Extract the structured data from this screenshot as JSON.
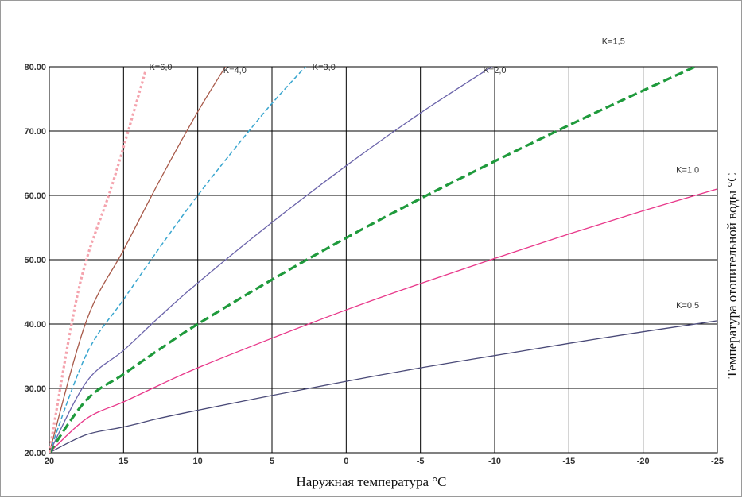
{
  "chart_data": {
    "type": "line",
    "title": "",
    "xlabel": "Наружная температура °C",
    "ylabel": "Температура отопительной воды °C",
    "xlim": [
      20,
      -25
    ],
    "ylim": [
      20,
      80
    ],
    "xticks": [
      20,
      15,
      10,
      5,
      0,
      -5,
      -10,
      -15,
      -20,
      -25
    ],
    "xtick_labels": [
      "20",
      "15",
      "10",
      "5",
      "0",
      "-5",
      "-10",
      "-15",
      "-20",
      "-25"
    ],
    "yticks": [
      20,
      30,
      40,
      50,
      60,
      70,
      80
    ],
    "ytick_labels": [
      "20.00",
      "30.00",
      "40.00",
      "50.00",
      "60.00",
      "70.00",
      "80.00"
    ],
    "grid": true,
    "series": [
      {
        "name": "K=0,5",
        "color": "#4a4a78",
        "dash": "solid",
        "x": [
          20,
          17.5,
          15,
          12.5,
          10,
          5,
          0,
          -5,
          -10,
          -15,
          -20,
          -25
        ],
        "y": [
          20,
          22.8,
          24,
          25.4,
          26.6,
          28.9,
          31.1,
          33.2,
          35.1,
          37,
          38.8,
          40.5
        ]
      },
      {
        "name": "K=1,0",
        "color": "#e8388a",
        "dash": "solid",
        "x": [
          20,
          17.5,
          15,
          12.5,
          10,
          5,
          0,
          -5,
          -10,
          -15,
          -20,
          -25
        ],
        "y": [
          20,
          25.3,
          27.9,
          30.6,
          33.2,
          37.8,
          42.2,
          46.3,
          50.2,
          54,
          57.6,
          61
        ]
      },
      {
        "name": "K=1,5",
        "color": "#1f9a3c",
        "dash": "thick-dash",
        "x": [
          20,
          17.5,
          15,
          12.5,
          10,
          5,
          0,
          -5,
          -10,
          -15,
          -20,
          -23.5
        ],
        "y": [
          20,
          28.2,
          32.2,
          36.2,
          40,
          46.9,
          53.4,
          59.5,
          65.3,
          70.9,
          76.3,
          80
        ]
      },
      {
        "name": "K=2,0",
        "color": "#6b64aa",
        "dash": "solid",
        "x": [
          20,
          17.5,
          15,
          12.5,
          10,
          5,
          0,
          -5,
          -10
        ],
        "y": [
          20,
          31,
          35.9,
          41.3,
          46.4,
          55.8,
          64.6,
          72.8,
          80.3
        ]
      },
      {
        "name": "K=3,0",
        "color": "#3aa6cf",
        "dash": "dash",
        "x": [
          20,
          17.5,
          15,
          12.5,
          10,
          7.5,
          5,
          2.5
        ],
        "y": [
          20,
          35.3,
          43.8,
          52.1,
          60,
          67.3,
          74.3,
          80.6
        ]
      },
      {
        "name": "K=4,0",
        "color": "#a85a4a",
        "dash": "solid",
        "x": [
          20,
          17.5,
          15,
          12.5,
          10,
          8
        ],
        "y": [
          20,
          40.5,
          51.5,
          62.6,
          73,
          80.5
        ]
      },
      {
        "name": "K=6,0",
        "color": "#f4a3ad",
        "dash": "dot",
        "x": [
          20,
          18.5,
          17.5,
          16,
          15,
          13.5
        ],
        "y": [
          20,
          40,
          50,
          60,
          67.5,
          79.5
        ]
      }
    ],
    "annotations": [
      {
        "text": "K=0,5",
        "x": -23,
        "y": 42.5
      },
      {
        "text": "K=1,0",
        "x": -23,
        "y": 63.5
      },
      {
        "text": "K=1,5",
        "x": -18,
        "y": 83.5
      },
      {
        "text": "K=2,0",
        "x": -10,
        "y": 79
      },
      {
        "text": "K=3,0",
        "x": 1.5,
        "y": 79.5
      },
      {
        "text": "K=4,0",
        "x": 7.5,
        "y": 79
      },
      {
        "text": "K=6,0",
        "x": 12.5,
        "y": 79.5
      }
    ]
  }
}
